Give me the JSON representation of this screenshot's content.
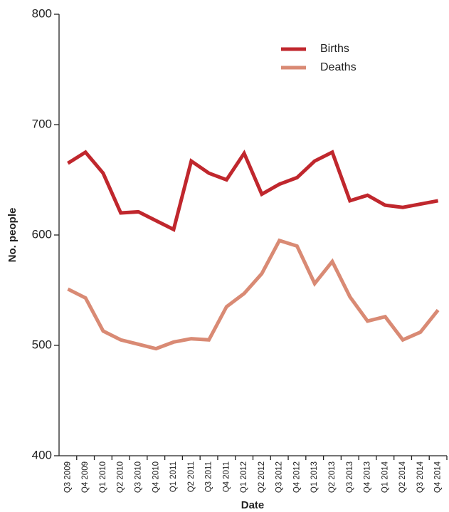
{
  "chart_data": {
    "type": "line",
    "x_label": "Date",
    "y_label": "No. people",
    "categories": [
      "Q3 2009",
      "Q4 2009",
      "Q1 2010",
      "Q2 2010",
      "Q3 2010",
      "Q4 2010",
      "Q1 2011",
      "Q2 2011",
      "Q3 2011",
      "Q4 2011",
      "Q1 2012",
      "Q2 2012",
      "Q3 2012",
      "Q4 2012",
      "Q1 2013",
      "Q2 2013",
      "Q3 2013",
      "Q4 2013",
      "Q1 2014",
      "Q2 2014",
      "Q3 2014",
      "Q4 2014"
    ],
    "series": [
      {
        "name": "Births",
        "color": "#c0272d",
        "values": [
          665,
          675,
          656,
          620,
          621,
          613,
          605,
          667,
          656,
          650,
          674,
          637,
          646,
          652,
          667,
          675,
          631,
          636,
          627,
          625,
          628,
          631
        ]
      },
      {
        "name": "Deaths",
        "color": "#d98a74",
        "values": [
          551,
          543,
          513,
          505,
          501,
          497,
          503,
          506,
          505,
          535,
          547,
          565,
          595,
          590,
          556,
          576,
          544,
          522,
          526,
          505,
          512,
          532
        ]
      }
    ],
    "ylim": [
      400,
      800
    ],
    "yticks": [
      400,
      500,
      600,
      700,
      800
    ]
  }
}
